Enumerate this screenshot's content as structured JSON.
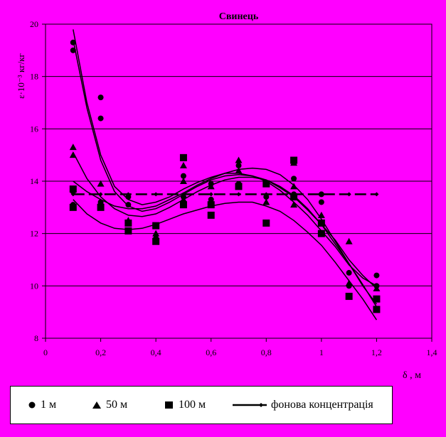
{
  "chart_data": {
    "type": "scatter",
    "title": "Свинець",
    "ylabel": "ε·10⁻³ кг/кг",
    "xlabel": "δ , м",
    "xlim": [
      0,
      1.4
    ],
    "ylim": [
      8,
      20
    ],
    "xticks": [
      "0",
      "0,2",
      "0,4",
      "0,6",
      "0,8",
      "1",
      "1,2",
      "1,4"
    ],
    "yticks": [
      "8",
      "10",
      "12",
      "14",
      "16",
      "18",
      "20"
    ],
    "grid": "horizontal",
    "legend_position": "bottom",
    "series": [
      {
        "name": "1 м",
        "marker": "circle",
        "points": [
          [
            0.1,
            19.3
          ],
          [
            0.1,
            19.0
          ],
          [
            0.1,
            13.6
          ],
          [
            0.1,
            13.1
          ],
          [
            0.2,
            17.2
          ],
          [
            0.2,
            16.4
          ],
          [
            0.2,
            13.2
          ],
          [
            0.3,
            13.4
          ],
          [
            0.3,
            13.1
          ],
          [
            0.4,
            12.3
          ],
          [
            0.5,
            14.2
          ],
          [
            0.5,
            13.4
          ],
          [
            0.6,
            13.9
          ],
          [
            0.6,
            13.3
          ],
          [
            0.7,
            14.6
          ],
          [
            0.7,
            13.9
          ],
          [
            0.8,
            13.4
          ],
          [
            0.8,
            12.4
          ],
          [
            0.9,
            14.1
          ],
          [
            0.9,
            13.5
          ],
          [
            1.0,
            13.5
          ],
          [
            1.0,
            13.2
          ],
          [
            1.1,
            10.5
          ],
          [
            1.1,
            10.0
          ],
          [
            1.2,
            10.4
          ],
          [
            1.2,
            10.0
          ]
        ]
      },
      {
        "name": "50 м",
        "marker": "triangle",
        "points": [
          [
            0.1,
            15.3
          ],
          [
            0.1,
            15.0
          ],
          [
            0.2,
            13.9
          ],
          [
            0.2,
            13.2
          ],
          [
            0.3,
            12.5
          ],
          [
            0.4,
            12.0
          ],
          [
            0.4,
            11.9
          ],
          [
            0.5,
            14.6
          ],
          [
            0.5,
            14.0
          ],
          [
            0.5,
            13.3
          ],
          [
            0.6,
            13.8
          ],
          [
            0.6,
            13.2
          ],
          [
            0.7,
            14.8
          ],
          [
            0.7,
            14.4
          ],
          [
            0.8,
            13.2
          ],
          [
            0.9,
            14.7
          ],
          [
            0.9,
            13.8
          ],
          [
            0.9,
            13.1
          ],
          [
            1.0,
            12.7
          ],
          [
            1.1,
            11.7
          ],
          [
            1.1,
            10.1
          ],
          [
            1.2,
            9.9
          ],
          [
            1.2,
            9.5
          ]
        ]
      },
      {
        "name": "100 м",
        "marker": "square",
        "points": [
          [
            0.1,
            13.7
          ],
          [
            0.1,
            13.0
          ],
          [
            0.2,
            13.0
          ],
          [
            0.3,
            12.4
          ],
          [
            0.3,
            12.1
          ],
          [
            0.4,
            12.3
          ],
          [
            0.4,
            11.7
          ],
          [
            0.5,
            14.9
          ],
          [
            0.5,
            13.1
          ],
          [
            0.6,
            13.1
          ],
          [
            0.6,
            12.7
          ],
          [
            0.7,
            13.8
          ],
          [
            0.8,
            13.9
          ],
          [
            0.8,
            12.4
          ],
          [
            0.9,
            14.8
          ],
          [
            0.9,
            13.4
          ],
          [
            1.0,
            12.4
          ],
          [
            1.0,
            12.0
          ],
          [
            1.1,
            9.6
          ],
          [
            1.2,
            9.5
          ],
          [
            1.2,
            9.1
          ]
        ]
      }
    ],
    "trend_lines": [
      {
        "points": [
          [
            0.1,
            19.8
          ],
          [
            0.15,
            17.0
          ],
          [
            0.2,
            15.0
          ],
          [
            0.25,
            13.8
          ],
          [
            0.3,
            13.3
          ],
          [
            0.35,
            13.1
          ],
          [
            0.4,
            13.2
          ],
          [
            0.45,
            13.4
          ],
          [
            0.5,
            13.7
          ],
          [
            0.55,
            13.95
          ],
          [
            0.6,
            14.15
          ],
          [
            0.65,
            14.3
          ],
          [
            0.7,
            14.3
          ],
          [
            0.75,
            14.2
          ],
          [
            0.8,
            14.0
          ],
          [
            0.85,
            13.65
          ],
          [
            0.9,
            13.2
          ],
          [
            0.95,
            12.7
          ],
          [
            1.0,
            12.1
          ],
          [
            1.05,
            11.5
          ],
          [
            1.1,
            10.8
          ],
          [
            1.15,
            10.3
          ],
          [
            1.2,
            10.0
          ]
        ]
      },
      {
        "points": [
          [
            0.1,
            19.4
          ],
          [
            0.15,
            16.8
          ],
          [
            0.2,
            14.8
          ],
          [
            0.25,
            13.6
          ],
          [
            0.3,
            13.05
          ],
          [
            0.35,
            12.85
          ],
          [
            0.4,
            12.95
          ],
          [
            0.45,
            13.2
          ],
          [
            0.5,
            13.5
          ],
          [
            0.55,
            13.8
          ],
          [
            0.6,
            14.05
          ],
          [
            0.65,
            14.2
          ],
          [
            0.7,
            14.25
          ],
          [
            0.75,
            14.2
          ],
          [
            0.8,
            14.05
          ],
          [
            0.85,
            13.75
          ],
          [
            0.9,
            13.4
          ],
          [
            0.95,
            12.9
          ],
          [
            1.0,
            12.35
          ],
          [
            1.05,
            11.75
          ],
          [
            1.1,
            11.0
          ],
          [
            1.15,
            10.4
          ],
          [
            1.2,
            9.9
          ]
        ]
      },
      {
        "points": [
          [
            0.1,
            15.1
          ],
          [
            0.15,
            14.1
          ],
          [
            0.2,
            13.4
          ],
          [
            0.25,
            12.95
          ],
          [
            0.3,
            12.7
          ],
          [
            0.35,
            12.65
          ],
          [
            0.4,
            12.75
          ],
          [
            0.45,
            13.0
          ],
          [
            0.5,
            13.3
          ],
          [
            0.55,
            13.6
          ],
          [
            0.6,
            13.85
          ],
          [
            0.65,
            14.05
          ],
          [
            0.7,
            14.15
          ],
          [
            0.75,
            14.15
          ],
          [
            0.8,
            14.05
          ],
          [
            0.85,
            13.8
          ],
          [
            0.9,
            13.45
          ],
          [
            0.95,
            12.95
          ],
          [
            1.0,
            12.35
          ],
          [
            1.05,
            11.6
          ],
          [
            1.1,
            10.85
          ],
          [
            1.15,
            10.05
          ],
          [
            1.2,
            9.2
          ]
        ]
      },
      {
        "points": [
          [
            0.1,
            14.0
          ],
          [
            0.15,
            13.6
          ],
          [
            0.2,
            13.3
          ],
          [
            0.25,
            13.05
          ],
          [
            0.3,
            12.95
          ],
          [
            0.35,
            12.95
          ],
          [
            0.4,
            13.05
          ],
          [
            0.45,
            13.3
          ],
          [
            0.5,
            13.55
          ],
          [
            0.55,
            13.85
          ],
          [
            0.6,
            14.1
          ],
          [
            0.65,
            14.3
          ],
          [
            0.7,
            14.45
          ],
          [
            0.75,
            14.5
          ],
          [
            0.8,
            14.45
          ],
          [
            0.85,
            14.25
          ],
          [
            0.9,
            13.85
          ],
          [
            0.95,
            13.3
          ],
          [
            1.0,
            12.55
          ],
          [
            1.05,
            11.7
          ],
          [
            1.1,
            10.85
          ],
          [
            1.15,
            10.0
          ],
          [
            1.2,
            9.3
          ]
        ]
      },
      {
        "points": [
          [
            0.1,
            13.3
          ],
          [
            0.15,
            12.75
          ],
          [
            0.2,
            12.4
          ],
          [
            0.25,
            12.2
          ],
          [
            0.3,
            12.15
          ],
          [
            0.35,
            12.2
          ],
          [
            0.4,
            12.35
          ],
          [
            0.45,
            12.55
          ],
          [
            0.5,
            12.75
          ],
          [
            0.55,
            12.9
          ],
          [
            0.6,
            13.05
          ],
          [
            0.65,
            13.15
          ],
          [
            0.7,
            13.2
          ],
          [
            0.75,
            13.2
          ],
          [
            0.8,
            13.05
          ],
          [
            0.85,
            12.85
          ],
          [
            0.9,
            12.5
          ],
          [
            0.95,
            12.05
          ],
          [
            1.0,
            11.55
          ],
          [
            1.05,
            10.9
          ],
          [
            1.1,
            10.2
          ],
          [
            1.15,
            9.5
          ],
          [
            1.2,
            8.7
          ]
        ]
      }
    ],
    "background_series": {
      "name": "фонова концентрація",
      "points": [
        [
          0.1,
          13.5
        ],
        [
          0.2,
          13.5
        ],
        [
          0.3,
          13.5
        ],
        [
          0.4,
          13.5
        ],
        [
          0.5,
          13.5
        ],
        [
          0.6,
          13.5
        ],
        [
          0.7,
          13.5
        ],
        [
          0.8,
          13.5
        ],
        [
          0.9,
          13.5
        ],
        [
          1.0,
          13.5
        ],
        [
          1.1,
          13.5
        ],
        [
          1.2,
          13.5
        ]
      ]
    },
    "colors": {
      "background": "#ff00ff",
      "plot_area": "#ff00ff",
      "markers": "#000000",
      "lines": "#000000",
      "grid": "#000000",
      "legend_background": "#ffffff"
    }
  },
  "legend": {
    "items": [
      {
        "label": "1 м",
        "marker": "circle"
      },
      {
        "label": "50 м",
        "marker": "triangle"
      },
      {
        "label": "100 м",
        "marker": "square"
      },
      {
        "label": "фонова концентрація",
        "marker": "line"
      }
    ]
  }
}
